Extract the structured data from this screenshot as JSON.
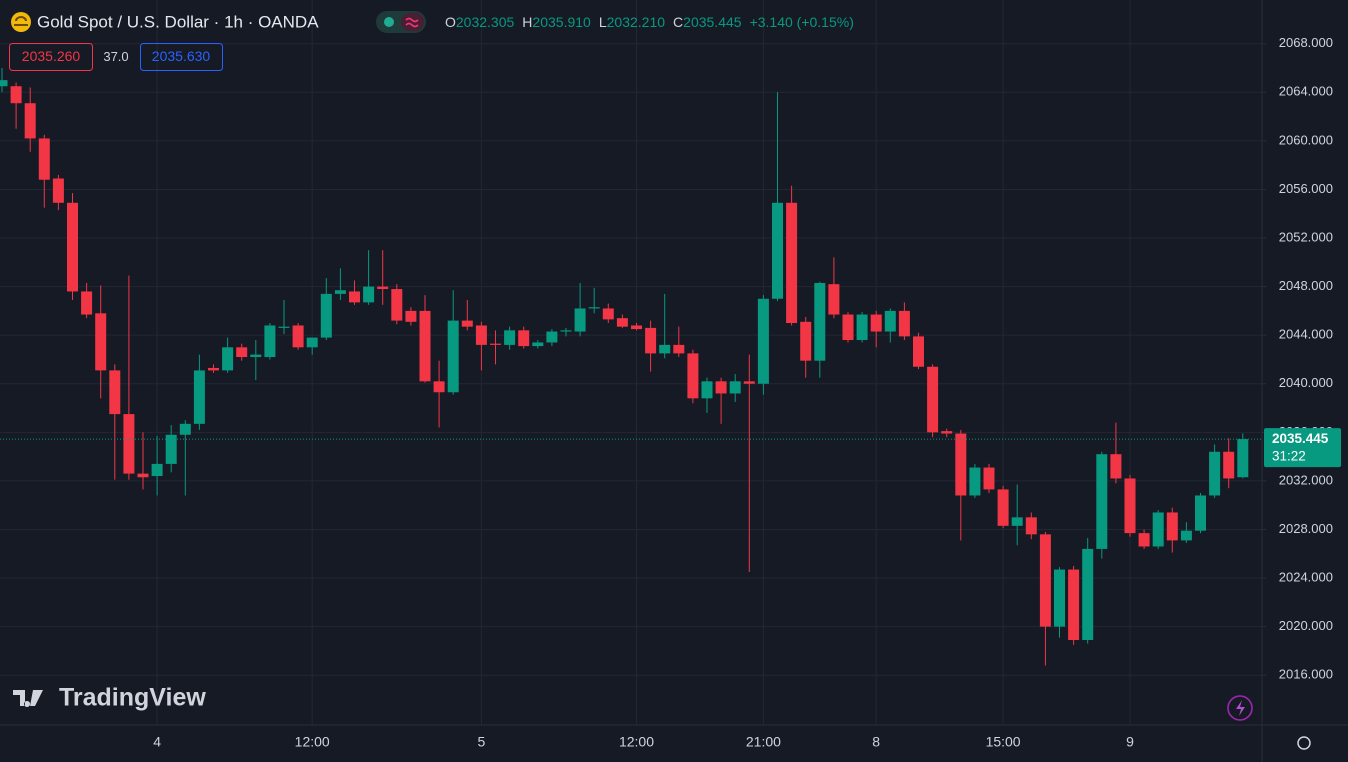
{
  "chart_data": {
    "type": "candlestick",
    "title": "Gold Spot / U.S. Dollar · 1h · OANDA",
    "ohlc_legend": [
      {
        "key": "O",
        "value": "2032.305"
      },
      {
        "key": "H",
        "value": "2035.910"
      },
      {
        "key": "L",
        "value": "2032.210"
      },
      {
        "key": "C",
        "value": "2035.445"
      }
    ],
    "change": "+3.140 (+0.15%)",
    "bid": "2035.260",
    "spread": "37.0",
    "ask": "2035.630",
    "watermark": "TradingView",
    "up_color": "#089981",
    "down_color": "#f23645",
    "categories": [
      null,
      null,
      null,
      null,
      null,
      null,
      null,
      null,
      null,
      null,
      null,
      "4",
      null,
      null,
      null,
      null,
      null,
      null,
      null,
      null,
      null,
      null,
      "12:00",
      null,
      null,
      null,
      null,
      null,
      null,
      null,
      null,
      null,
      null,
      null,
      "5",
      null,
      null,
      null,
      null,
      null,
      null,
      null,
      null,
      null,
      null,
      "12:00",
      null,
      null,
      null,
      null,
      null,
      null,
      null,
      null,
      "21:00",
      null,
      null,
      null,
      null,
      null,
      null,
      null,
      "8",
      null,
      null,
      null,
      null,
      null,
      null,
      null,
      null,
      "15:00",
      null,
      null,
      null,
      null,
      null,
      null,
      null,
      null,
      "9",
      null,
      null,
      null,
      null,
      null,
      null,
      null,
      null
    ],
    "open": [
      2064.5,
      2064.5,
      2063.1,
      2060.2,
      2056.9,
      2054.9,
      2047.6,
      2045.8,
      2041.1,
      2037.5,
      2032.6,
      2032.4,
      2033.4,
      2035.8,
      2036.7,
      2041.3,
      2041.1,
      2043,
      2042.2,
      2042.2,
      2044.6,
      2044.8,
      2043,
      2043.8,
      2047.4,
      2047.6,
      2046.7,
      2048,
      2047.8,
      2046,
      2046,
      2040.2,
      2039.3,
      2045.2,
      2044.8,
      2043.3,
      2043.2,
      2044.4,
      2043.1,
      2043.4,
      2044.3,
      2044.3,
      2046.2,
      2046.2,
      2045.4,
      2044.8,
      2044.6,
      2042.5,
      2043.2,
      2042.5,
      2038.8,
      2040.2,
      2039.2,
      2040.2,
      2040,
      2047,
      2054.9,
      2045.1,
      2041.9,
      2048.2,
      2045.7,
      2043.6,
      2045.7,
      2044.3,
      2046,
      2043.9,
      2041.4,
      2036.1,
      2035.9,
      2030.8,
      2033.1,
      2031.3,
      2028.3,
      2029,
      2027.6,
      2020,
      2024.7,
      2018.9,
      2026.4,
      2034.2,
      2032.2,
      2027.7,
      2026.6,
      2029.4,
      2027.1,
      2027.9,
      2030.8,
      2034.4,
      2032.305
    ],
    "high": [
      2066,
      2064.8,
      2064.4,
      2060.5,
      2057.2,
      2055.7,
      2048.3,
      2048.1,
      2041.6,
      2048.9,
      2036,
      2035.7,
      2036.6,
      2037,
      2042.4,
      2041.6,
      2043.8,
      2043.3,
      2043.6,
      2045,
      2046.9,
      2045,
      2043.8,
      2048.7,
      2049.5,
      2048.5,
      2051,
      2051,
      2048.2,
      2046.3,
      2047.3,
      2041.9,
      2047.7,
      2046.9,
      2045.1,
      2044.4,
      2044.7,
      2044.7,
      2043.6,
      2044.5,
      2044.6,
      2048.3,
      2047.9,
      2046.6,
      2045.7,
      2045,
      2045.2,
      2047.4,
      2044.7,
      2042.8,
      2040.5,
      2040.5,
      2040.8,
      2042.4,
      2047.3,
      2064,
      2056.3,
      2045.5,
      2048.4,
      2050.4,
      2045.9,
      2045.9,
      2046,
      2046.2,
      2046.7,
      2044.2,
      2041.6,
      2036.3,
      2036.2,
      2033.4,
      2033.4,
      2031.6,
      2031.7,
      2029.4,
      2027.8,
      2024.9,
      2025,
      2027.3,
      2034.4,
      2036.8,
      2032.5,
      2028,
      2029.6,
      2029.8,
      2028.6,
      2031,
      2035,
      2035.5,
      2035.91
    ],
    "low": [
      2064,
      2061,
      2059.1,
      2054.5,
      2054.3,
      2046.9,
      2045.4,
      2038.8,
      2032.1,
      2032.1,
      2031.3,
      2030.8,
      2032.7,
      2030.8,
      2036.2,
      2040.9,
      2040.9,
      2041.9,
      2040.3,
      2042,
      2044.1,
      2042.8,
      2042.4,
      2043.6,
      2046.9,
      2046.5,
      2046.5,
      2046.5,
      2044.9,
      2044.8,
      2040.1,
      2036.4,
      2039.1,
      2044.4,
      2041.1,
      2041.6,
      2042.8,
      2042.9,
      2042.9,
      2043.1,
      2043.9,
      2043.9,
      2045.8,
      2045,
      2044.6,
      2044.4,
      2041,
      2042.1,
      2042.2,
      2038.4,
      2037.6,
      2036.7,
      2038.5,
      2024.5,
      2039.1,
      2046.8,
      2044.8,
      2040.5,
      2040.5,
      2045.4,
      2043.4,
      2043.4,
      2043,
      2043.4,
      2043.6,
      2041.2,
      2035.6,
      2035.6,
      2027.1,
      2030.6,
      2031,
      2028.1,
      2026.7,
      2027.2,
      2016.8,
      2019.1,
      2018.5,
      2018.6,
      2025.6,
      2031.8,
      2027.4,
      2026.4,
      2026.4,
      2026.1,
      2026.9,
      2027.7,
      2030.6,
      2031.4,
      2032.21
    ],
    "close": [
      2065,
      2063.1,
      2060.2,
      2056.8,
      2054.9,
      2047.6,
      2045.7,
      2041.1,
      2037.5,
      2032.6,
      2032.3,
      2033.4,
      2035.8,
      2036.7,
      2041.1,
      2041.1,
      2043,
      2042.2,
      2042.4,
      2044.8,
      2044.7,
      2043,
      2043.8,
      2047.4,
      2047.7,
      2046.7,
      2048,
      2047.8,
      2045.2,
      2045.1,
      2040.2,
      2039.3,
      2045.2,
      2044.7,
      2043.2,
      2043.2,
      2044.4,
      2043.1,
      2043.4,
      2044.3,
      2044.4,
      2046.2,
      2046.3,
      2045.3,
      2044.7,
      2044.5,
      2042.5,
      2043.2,
      2042.5,
      2038.8,
      2040.2,
      2039.2,
      2040.2,
      2040,
      2047,
      2054.9,
      2045,
      2041.9,
      2048.3,
      2045.7,
      2043.6,
      2045.7,
      2044.3,
      2046,
      2043.9,
      2041.4,
      2036,
      2035.9,
      2030.8,
      2033.1,
      2031.3,
      2028.3,
      2029,
      2027.6,
      2020,
      2024.7,
      2018.9,
      2026.4,
      2034.2,
      2032.2,
      2027.7,
      2026.6,
      2029.4,
      2027.1,
      2027.9,
      2030.8,
      2034.4,
      2032.2,
      2035.445
    ],
    "current_price": 2035.445,
    "countdown": "31:22",
    "ylim": [
      2011.9,
      2071.6
    ],
    "yticks": [
      {
        "value": 2016,
        "label": "2016.000"
      },
      {
        "value": 2020,
        "label": "2020.000"
      },
      {
        "value": 2024,
        "label": "2024.000"
      },
      {
        "value": 2028,
        "label": "2028.000"
      },
      {
        "value": 2032,
        "label": "2032.000"
      },
      {
        "value": 2036,
        "label": "2036.000"
      },
      {
        "value": 2040,
        "label": "2040.000"
      },
      {
        "value": 2044,
        "label": "2044.000"
      },
      {
        "value": 2048,
        "label": "2048.000"
      },
      {
        "value": 2052,
        "label": "2052.000"
      },
      {
        "value": 2056,
        "label": "2056.000"
      },
      {
        "value": 2060,
        "label": "2060.000"
      },
      {
        "value": 2064,
        "label": "2064.000"
      },
      {
        "value": 2068,
        "label": "2068.000"
      }
    ],
    "grid": true
  }
}
